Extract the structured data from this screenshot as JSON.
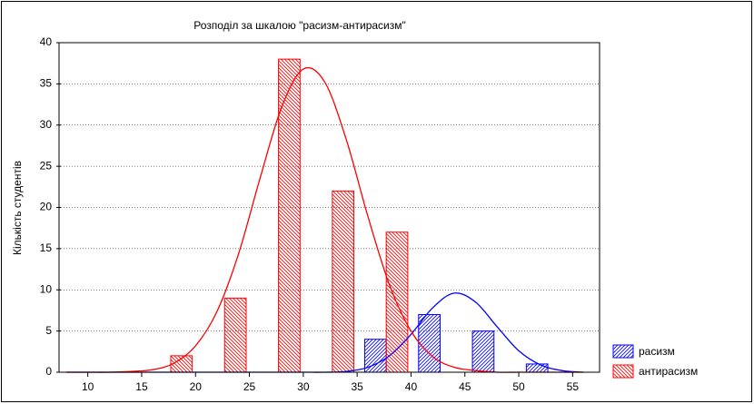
{
  "chart_data": {
    "type": "bar",
    "title": "Розподіл за шкалою \"расизм-антирасизм\"",
    "y_label": "Кількість студентів",
    "xlim": [
      7.5,
      57.5
    ],
    "xticks": [
      10,
      15,
      20,
      25,
      30,
      35,
      40,
      45,
      50,
      55
    ],
    "ylim": [
      0,
      40
    ],
    "yticks": [
      0,
      5,
      10,
      15,
      20,
      25,
      30,
      35,
      40
    ],
    "grid": true,
    "legend": "bottom-right",
    "series": [
      {
        "name": "расизм",
        "color": "#0000ff",
        "x": [
          36.7,
          41.7,
          46.7,
          51.7
        ],
        "values": [
          4,
          7,
          5,
          1
        ]
      },
      {
        "name": "антирасизм",
        "color": "#ff0000",
        "x": [
          18.7,
          23.7,
          28.7,
          33.7,
          38.7
        ],
        "values": [
          2,
          9,
          38,
          22,
          17
        ]
      }
    ],
    "curve_x": [
      8,
      10,
      12,
      14,
      16,
      18,
      20,
      22,
      24,
      26,
      28,
      30,
      32,
      34,
      36,
      38,
      40,
      42,
      44,
      46,
      48,
      50,
      52,
      54,
      56
    ],
    "curves": [
      {
        "color": "#0000ff",
        "values": [
          0,
          0,
          0,
          0,
          0,
          0,
          0,
          0,
          0,
          0,
          0,
          0,
          0,
          0.1,
          0.6,
          2.0,
          4.6,
          7.8,
          9.6,
          8.5,
          5.5,
          2.6,
          0.9,
          0.2,
          0
        ]
      },
      {
        "color": "#ff0000",
        "values": [
          0,
          0,
          0,
          0.1,
          0.3,
          1.1,
          3.2,
          7.4,
          14.4,
          23.6,
          32.2,
          36.8,
          35.2,
          28.2,
          18.9,
          10.6,
          5.0,
          1.9,
          0.6,
          0.2,
          0,
          0,
          0,
          0,
          0
        ]
      }
    ]
  }
}
